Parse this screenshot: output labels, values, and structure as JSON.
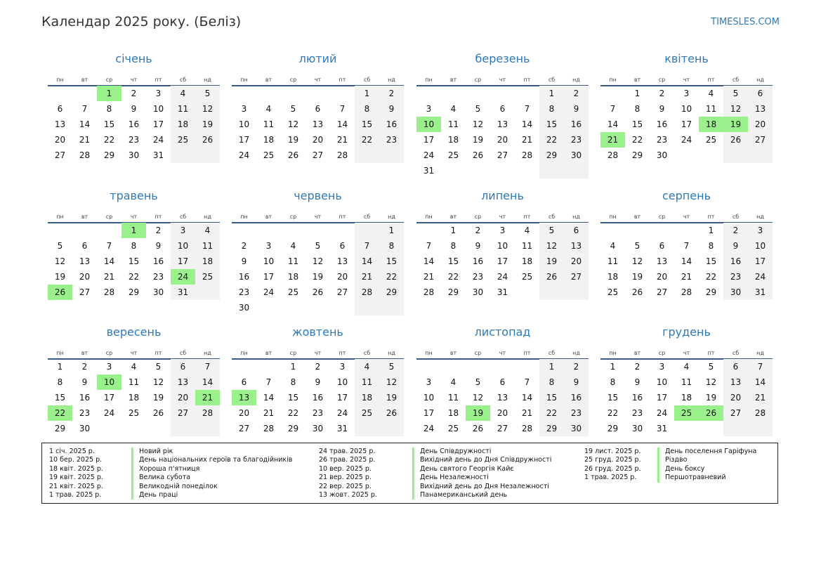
{
  "header": {
    "title": "Календар 2025 року. (Беліз)",
    "brand": "TIMESLES.COM"
  },
  "weekdays": [
    "пн",
    "вт",
    "ср",
    "чт",
    "пт",
    "сб",
    "нд"
  ],
  "year": 2025,
  "months": [
    {
      "name": "січень",
      "holidays": [
        1
      ]
    },
    {
      "name": "лютий",
      "holidays": []
    },
    {
      "name": "березень",
      "holidays": [
        10
      ]
    },
    {
      "name": "квітень",
      "holidays": [
        18,
        19,
        21
      ]
    },
    {
      "name": "травень",
      "holidays": [
        1,
        24,
        26
      ]
    },
    {
      "name": "червень",
      "holidays": []
    },
    {
      "name": "липень",
      "holidays": []
    },
    {
      "name": "серпень",
      "holidays": []
    },
    {
      "name": "вересень",
      "holidays": [
        10,
        21,
        22
      ]
    },
    {
      "name": "жовтень",
      "holidays": [
        13
      ]
    },
    {
      "name": "листопад",
      "holidays": [
        19
      ]
    },
    {
      "name": "грудень",
      "holidays": [
        25,
        26
      ]
    }
  ],
  "legend": [
    {
      "date": "1 січ. 2025 р.",
      "name": "Новий рік"
    },
    {
      "date": "10 бер. 2025 р.",
      "name": "День національних героїв та благодійників"
    },
    {
      "date": "18 квіт. 2025 р.",
      "name": "Хороша п'ятниця"
    },
    {
      "date": "19 квіт. 2025 р.",
      "name": "Велика субота"
    },
    {
      "date": "21 квіт. 2025 р.",
      "name": "Великодній понеділок"
    },
    {
      "date": "1 трав. 2025 р.",
      "name": "День праці"
    },
    {
      "date": "24 трав. 2025 р.",
      "name": "День Співдружності"
    },
    {
      "date": "26 трав. 2025 р.",
      "name": "Вихідний день до Дня Співдружності"
    },
    {
      "date": "10 вер. 2025 р.",
      "name": "День святого Георгія Кайє"
    },
    {
      "date": "21 вер. 2025 р.",
      "name": "День Незалежності"
    },
    {
      "date": "22 вер. 2025 р.",
      "name": "Вихідний день до Дня Незалежності"
    },
    {
      "date": "13 жовт. 2025 р.",
      "name": "Панамериканський день"
    },
    {
      "date": "19 лист. 2025 р.",
      "name": "День поселення Гаріфуна"
    },
    {
      "date": "25 груд. 2025 р.",
      "name": "Різдво"
    },
    {
      "date": "26 груд. 2025 р.",
      "name": "День боксу"
    },
    {
      "date": "1 трав. 2025 р.",
      "name": "Першотравневий"
    }
  ],
  "colors": {
    "accent": "#2e79b9",
    "holiday": "#9af08a",
    "weekend": "#f2f2f2",
    "rule": "#3a5a86"
  }
}
